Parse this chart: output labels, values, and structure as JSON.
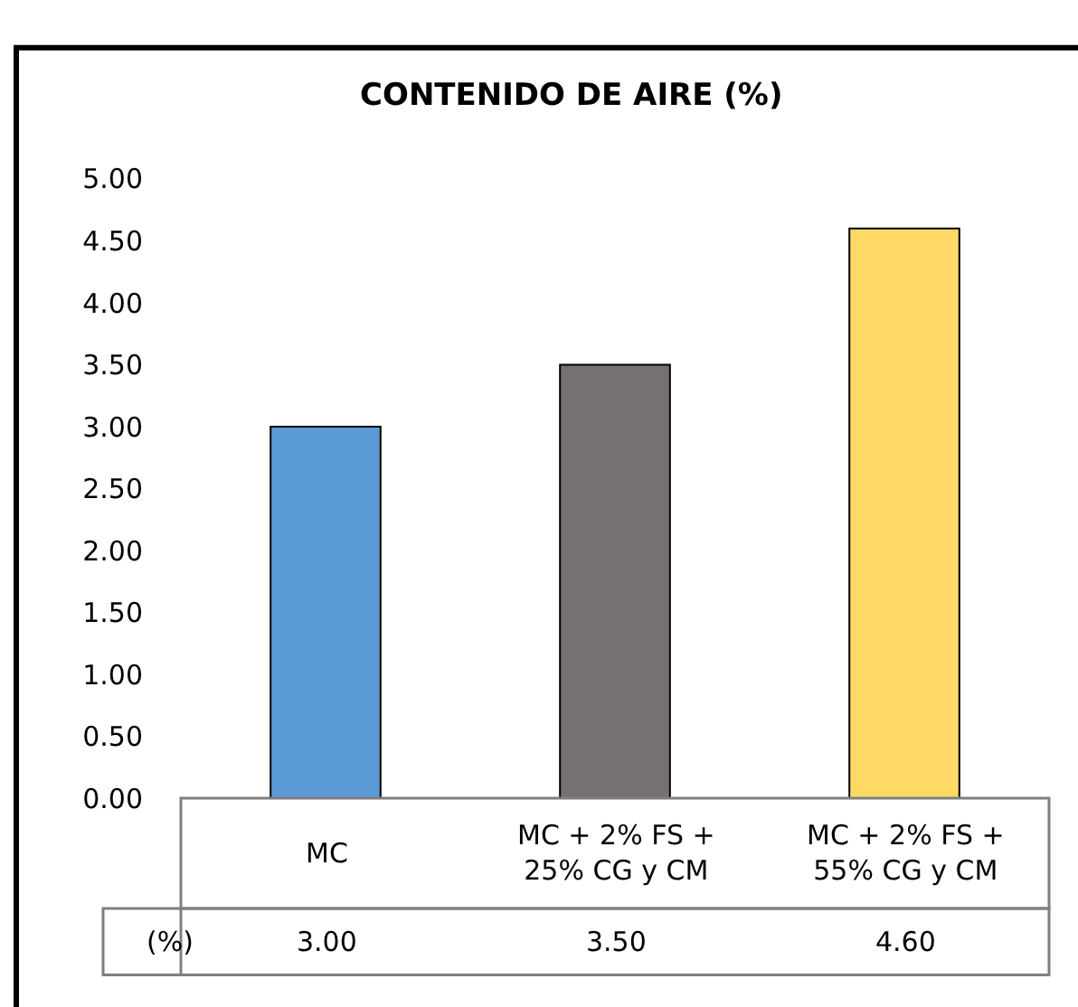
{
  "chart_data": {
    "type": "bar",
    "title": "CONTENIDO DE AIRE (%)",
    "categories": [
      "MC",
      "MC + 2% FS +\n25% CG y CM",
      "MC + 2% FS +\n55% CG y CM"
    ],
    "series": [
      {
        "name": "(%)",
        "colors": [
          "#5b9bd5",
          "#767171",
          "#ffd966"
        ],
        "values": [
          3.0,
          3.5,
          4.6
        ],
        "value_labels": [
          "3.00",
          "3.50",
          "4.60"
        ]
      }
    ],
    "ylim": [
      0,
      5
    ],
    "yticks": [
      {
        "value": 0,
        "label": "0.00"
      },
      {
        "value": 0.5,
        "label": "0.50"
      },
      {
        "value": 1,
        "label": "1.00"
      },
      {
        "value": 1.5,
        "label": "1.50"
      },
      {
        "value": 2,
        "label": "2.00"
      },
      {
        "value": 2.5,
        "label": "2.50"
      },
      {
        "value": 3,
        "label": "3.00"
      },
      {
        "value": 3.5,
        "label": "3.50"
      },
      {
        "value": 4,
        "label": "4.00"
      },
      {
        "value": 4.5,
        "label": "4.50"
      },
      {
        "value": 5,
        "label": "5.00"
      }
    ],
    "legend": false
  }
}
